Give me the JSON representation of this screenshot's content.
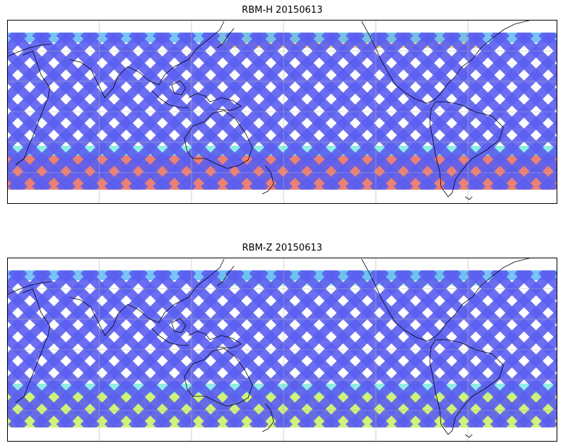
{
  "panels": [
    {
      "title": "RBM-H 20150613",
      "swath_colors": {
        "low": "#5b5ff0",
        "mid": "#62b8f5",
        "edge": "#74e8dd",
        "high_south": "#e86a5c",
        "high_north": "#f7c95a"
      },
      "coastline_color": "#000000",
      "grid": true
    },
    {
      "title": "RBM-Z 20150613",
      "swath_colors": {
        "low": "#5b5ff0",
        "mid": "#62b8f5",
        "edge": "#74e8dd",
        "high_south": "#c8f060",
        "high_north": "#9ff0c0"
      },
      "coastline_color": "#000000",
      "grid": true
    }
  ],
  "figure": {
    "background": "#ffffff"
  }
}
